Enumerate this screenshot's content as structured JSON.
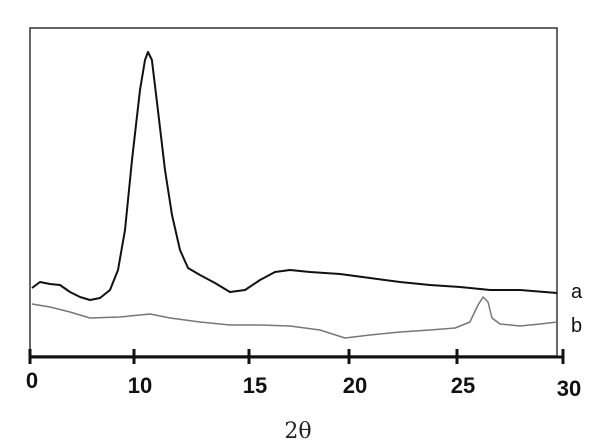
{
  "chart_data": {
    "type": "line",
    "title": "",
    "xlabel": "2θ",
    "ylabel": "",
    "xlim": [
      0,
      30
    ],
    "x_ticks": [
      "0",
      "10",
      "15",
      "20",
      "25",
      "30"
    ],
    "y_ticks": [],
    "y_units": "arbitrary (no y axis shown)",
    "grid": false,
    "legend": "series labels at right end of curves",
    "series": [
      {
        "name": "a",
        "color": "#111111",
        "x": [
          0.19,
          0.96,
          1.92,
          2.88,
          3.85,
          4.81,
          5.77,
          6.73,
          7.69,
          8.46,
          9.13,
          9.81,
          10.26,
          10.48,
          10.61,
          10.78,
          11.04,
          11.35,
          11.65,
          12.0,
          12.35,
          12.87,
          13.52,
          14.17,
          14.83,
          15.55,
          16.3,
          17.05,
          18.05,
          19.55,
          20.97,
          22.36,
          23.75,
          25.14,
          26.56,
          27.97,
          29.72
        ],
        "y": [
          64,
          70,
          68,
          67,
          60,
          55,
          52,
          54,
          62,
          82,
          122,
          192,
          262,
          292,
          300,
          292,
          242,
          182,
          137,
          102,
          84,
          77,
          69,
          60,
          62,
          72,
          80,
          82,
          80,
          78,
          74,
          70,
          67,
          65,
          62,
          62,
          59
        ]
      },
      {
        "name": "b",
        "color": "#777777",
        "x": [
          0.19,
          1.92,
          3.85,
          5.77,
          8.65,
          10.7,
          11.57,
          12.87,
          14.17,
          15.55,
          17.05,
          18.55,
          19.8,
          20.97,
          22.36,
          23.75,
          24.91,
          25.61,
          25.99,
          26.23,
          26.46,
          26.65,
          27.03,
          27.97,
          28.92,
          29.72
        ],
        "y": [
          48,
          45,
          40,
          34,
          35,
          38,
          34,
          30,
          27,
          27,
          26,
          22,
          14,
          17,
          20,
          22,
          24,
          30,
          47,
          55,
          50,
          34,
          28,
          26,
          28,
          30
        ]
      }
    ]
  }
}
